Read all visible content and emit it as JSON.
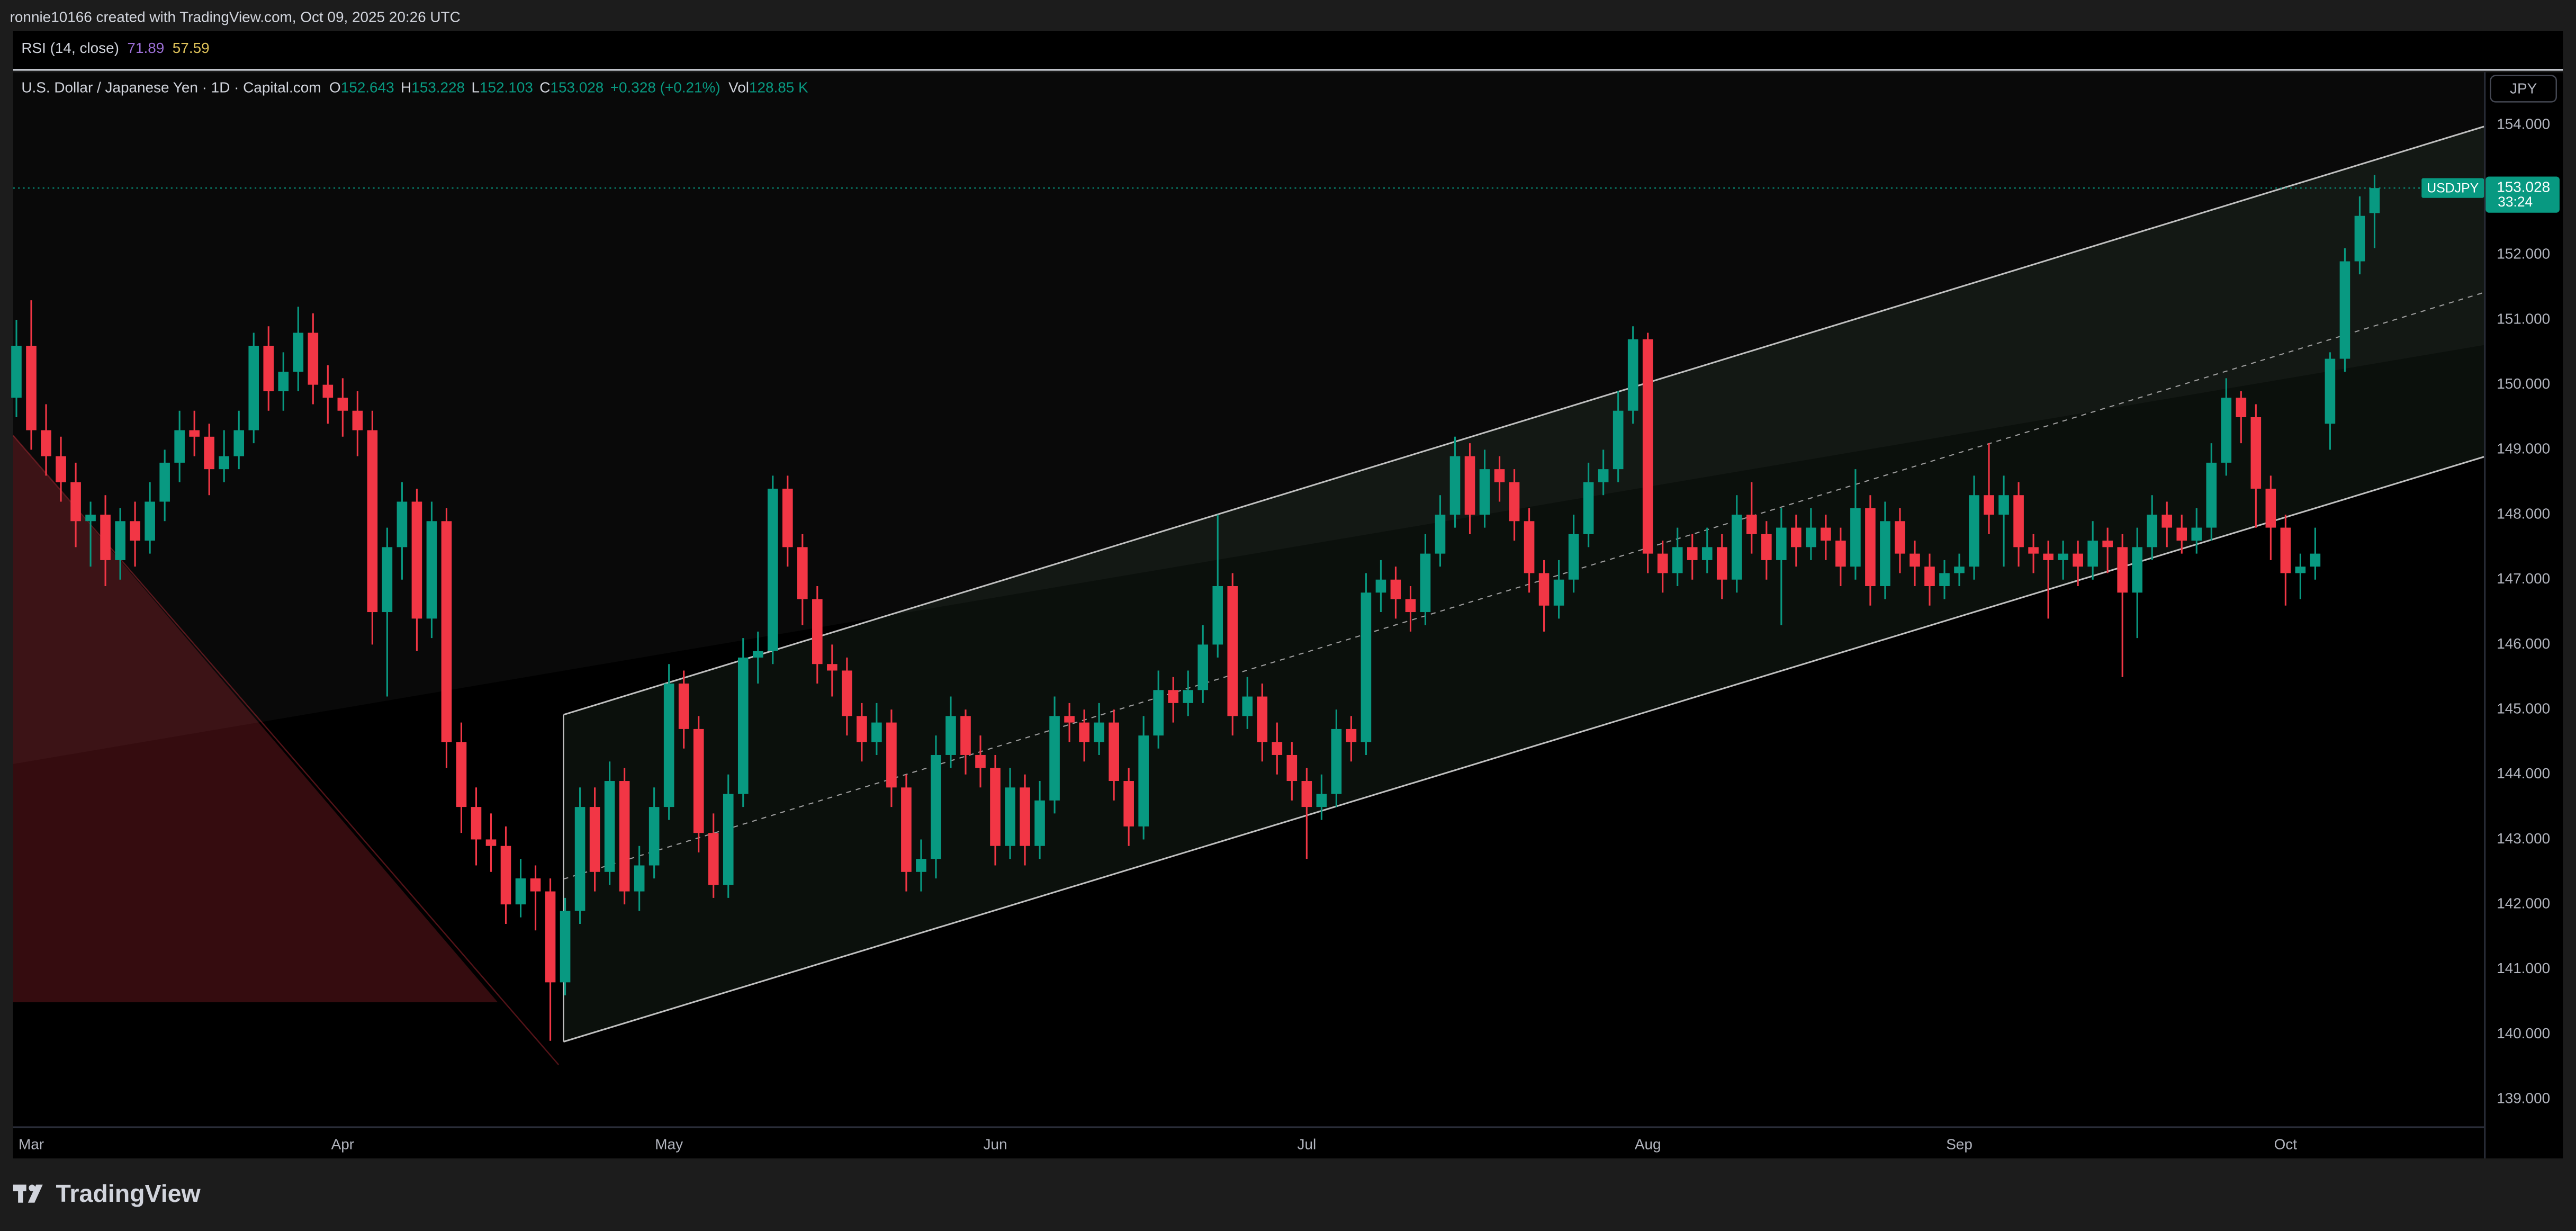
{
  "header": {
    "credit": "ronnie10166 created with TradingView.com, Oct 09, 2025 20:26 UTC"
  },
  "indicator": {
    "name": "RSI (14, close)",
    "values": [
      71.89,
      57.59
    ]
  },
  "footer": {
    "brand": "TradingView"
  },
  "chart_data": {
    "type": "candlestick",
    "title": "U.S. Dollar / Japanese Yen · 1D · Capital.com",
    "ohlc_labels": [
      "O",
      "H",
      "L",
      "C"
    ],
    "change": "+0.328 (+0.21%)",
    "volume_label": "Vol",
    "volume": "128.85 K",
    "currency": "JPY",
    "countdown": "33:24",
    "up_color": "#089981",
    "down_color": "#f23645",
    "grid": false,
    "ylim": [
      138.09,
      154.81
    ],
    "yticks": [
      {
        "value": 139,
        "label": "139.000"
      },
      {
        "value": 140,
        "label": "140.000"
      },
      {
        "value": 141,
        "label": "141.000"
      },
      {
        "value": 142,
        "label": "142.000"
      },
      {
        "value": 143,
        "label": "143.000"
      },
      {
        "value": 144,
        "label": "144.000"
      },
      {
        "value": 145,
        "label": "145.000"
      },
      {
        "value": 146,
        "label": "146.000"
      },
      {
        "value": 147,
        "label": "147.000"
      },
      {
        "value": 148,
        "label": "148.000"
      },
      {
        "value": 149,
        "label": "149.000"
      },
      {
        "value": 150,
        "label": "150.000"
      },
      {
        "value": 151,
        "label": "151.000"
      },
      {
        "value": 152,
        "label": "152.000"
      },
      {
        "value": 153,
        "label": "153.000"
      },
      {
        "value": 154,
        "label": "154.000"
      }
    ],
    "categories": [
      null,
      "Mar",
      null,
      null,
      null,
      null,
      null,
      null,
      null,
      null,
      null,
      null,
      null,
      null,
      null,
      null,
      null,
      null,
      null,
      null,
      null,
      null,
      "Apr",
      null,
      null,
      null,
      null,
      null,
      null,
      null,
      null,
      null,
      null,
      null,
      null,
      null,
      null,
      null,
      null,
      null,
      null,
      null,
      null,
      null,
      "May",
      null,
      null,
      null,
      null,
      null,
      null,
      null,
      null,
      null,
      null,
      null,
      null,
      null,
      null,
      null,
      null,
      null,
      null,
      null,
      null,
      null,
      "Jun",
      null,
      null,
      null,
      null,
      null,
      null,
      null,
      null,
      null,
      null,
      null,
      null,
      null,
      null,
      null,
      null,
      null,
      null,
      null,
      null,
      "Jul",
      null,
      null,
      null,
      null,
      null,
      null,
      null,
      null,
      null,
      null,
      null,
      null,
      null,
      null,
      null,
      null,
      null,
      null,
      null,
      null,
      null,
      null,
      "Aug",
      null,
      null,
      null,
      null,
      null,
      null,
      null,
      null,
      null,
      null,
      null,
      null,
      null,
      null,
      null,
      null,
      null,
      null,
      null,
      null,
      "Sep",
      null,
      null,
      null,
      null,
      null,
      null,
      null,
      null,
      null,
      null,
      null,
      null,
      null,
      null,
      null,
      null,
      null,
      null,
      null,
      null,
      null,
      "Oct",
      null,
      null,
      null,
      null,
      null,
      null
    ],
    "series": [
      {
        "name": "USDJPY",
        "open": [
          149.8,
          150.6,
          149.3,
          148.9,
          148.5,
          147.9,
          148.0,
          147.3,
          147.9,
          147.6,
          148.2,
          148.8,
          149.3,
          149.2,
          148.7,
          148.9,
          149.3,
          150.6,
          149.9,
          150.2,
          150.8,
          150.0,
          149.8,
          149.6,
          149.3,
          146.5,
          147.5,
          148.2,
          146.4,
          147.9,
          144.5,
          143.5,
          143.0,
          142.9,
          142.0,
          142.4,
          142.2,
          140.8,
          141.9,
          143.5,
          142.5,
          143.9,
          142.2,
          142.6,
          143.5,
          145.4,
          144.7,
          143.1,
          142.3,
          143.7,
          145.8,
          145.9,
          148.4,
          147.5,
          146.7,
          145.7,
          145.6,
          144.9,
          144.5,
          144.8,
          143.8,
          142.5,
          142.7,
          144.3,
          144.9,
          144.3,
          144.1,
          142.9,
          143.8,
          142.9,
          143.6,
          144.9,
          144.8,
          144.5,
          144.8,
          143.9,
          143.2,
          144.6,
          145.3,
          145.1,
          145.3,
          146.0,
          146.9,
          144.9,
          145.2,
          144.5,
          144.3,
          143.9,
          143.5,
          143.7,
          144.7,
          144.5,
          146.8,
          147.0,
          146.7,
          146.5,
          147.4,
          148.0,
          148.9,
          148.0,
          148.7,
          148.5,
          147.9,
          147.1,
          146.6,
          147.0,
          147.7,
          148.5,
          148.7,
          149.6,
          150.7,
          147.4,
          147.1,
          147.5,
          147.3,
          147.5,
          147.0,
          148.0,
          147.7,
          147.3,
          147.8,
          147.5,
          147.8,
          147.6,
          147.2,
          148.1,
          146.9,
          147.9,
          147.4,
          147.2,
          146.9,
          147.1,
          147.2,
          148.3,
          148.0,
          148.3,
          147.5,
          147.4,
          147.3,
          147.4,
          147.2,
          147.6,
          147.5,
          146.8,
          147.5,
          148.0,
          147.8,
          147.6,
          147.8,
          148.8,
          149.8,
          149.5,
          148.4,
          147.8,
          147.1,
          147.2,
          149.4,
          150.4,
          151.9,
          152.643
        ],
        "high": [
          151.0,
          151.3,
          149.7,
          149.2,
          148.8,
          148.2,
          148.3,
          148.1,
          148.2,
          148.5,
          149.0,
          149.6,
          149.6,
          149.4,
          149.3,
          149.6,
          150.8,
          150.9,
          150.5,
          151.2,
          151.1,
          150.3,
          150.1,
          149.9,
          149.6,
          147.8,
          148.5,
          148.4,
          148.2,
          148.1,
          144.8,
          143.8,
          143.4,
          143.2,
          142.7,
          142.6,
          142.4,
          142.1,
          143.8,
          143.8,
          144.2,
          144.1,
          142.9,
          143.8,
          145.7,
          145.6,
          144.9,
          143.4,
          144.0,
          146.1,
          146.2,
          148.6,
          148.6,
          147.7,
          146.9,
          146.0,
          145.8,
          145.1,
          145.1,
          145.0,
          144.0,
          143.0,
          144.6,
          145.2,
          145.0,
          144.6,
          144.3,
          144.1,
          144.0,
          143.9,
          145.2,
          145.1,
          145.0,
          145.1,
          145.0,
          144.1,
          144.9,
          145.6,
          145.5,
          145.6,
          146.3,
          148.0,
          147.1,
          145.5,
          145.4,
          144.8,
          144.5,
          144.1,
          144.0,
          145.0,
          144.9,
          147.1,
          147.3,
          147.2,
          146.9,
          147.7,
          148.3,
          149.2,
          149.1,
          149.0,
          148.9,
          148.7,
          148.1,
          147.3,
          147.3,
          148.0,
          148.8,
          149.0,
          149.9,
          150.9,
          150.8,
          147.6,
          147.8,
          147.7,
          147.8,
          147.7,
          148.3,
          148.5,
          147.9,
          148.1,
          148.0,
          148.1,
          148.0,
          147.8,
          148.7,
          148.3,
          148.2,
          148.1,
          147.6,
          147.4,
          147.3,
          147.4,
          148.6,
          149.1,
          148.6,
          148.5,
          147.7,
          147.6,
          147.6,
          147.6,
          147.9,
          147.8,
          147.7,
          147.8,
          148.3,
          148.2,
          148.0,
          148.1,
          149.1,
          150.1,
          149.9,
          149.7,
          148.6,
          148.0,
          147.4,
          147.8,
          150.5,
          152.1,
          152.9,
          153.228
        ],
        "low": [
          149.5,
          149.0,
          148.6,
          148.2,
          147.5,
          147.2,
          146.9,
          147.0,
          147.2,
          147.4,
          147.9,
          148.5,
          148.9,
          148.3,
          148.5,
          148.7,
          149.1,
          149.6,
          149.6,
          149.9,
          149.7,
          149.4,
          149.2,
          148.9,
          146.0,
          145.2,
          147.0,
          145.9,
          146.1,
          144.1,
          143.1,
          142.6,
          142.5,
          141.7,
          141.8,
          141.6,
          139.9,
          140.6,
          141.7,
          142.2,
          142.3,
          142.0,
          141.9,
          142.4,
          143.3,
          144.4,
          142.8,
          142.1,
          142.1,
          143.5,
          145.4,
          145.7,
          147.2,
          146.3,
          145.4,
          145.2,
          144.6,
          144.2,
          144.3,
          143.5,
          142.2,
          142.2,
          142.4,
          144.1,
          144.0,
          143.8,
          142.6,
          142.7,
          142.6,
          142.7,
          143.4,
          144.5,
          144.2,
          144.3,
          143.6,
          142.9,
          143.0,
          144.4,
          144.8,
          144.9,
          145.1,
          145.8,
          144.6,
          144.7,
          144.2,
          144.0,
          143.6,
          142.7,
          143.3,
          143.5,
          144.2,
          144.3,
          146.5,
          146.4,
          146.2,
          146.3,
          147.2,
          147.8,
          147.7,
          147.8,
          148.2,
          147.6,
          146.8,
          146.2,
          146.4,
          146.8,
          147.5,
          148.3,
          148.5,
          149.4,
          147.1,
          146.8,
          146.9,
          147.0,
          147.1,
          146.7,
          146.8,
          147.4,
          147.0,
          146.3,
          147.2,
          147.3,
          147.3,
          146.9,
          147.0,
          146.6,
          146.7,
          147.1,
          146.9,
          146.6,
          146.7,
          146.9,
          147.0,
          147.7,
          147.2,
          147.2,
          147.1,
          146.4,
          147.0,
          146.9,
          147.0,
          147.1,
          145.5,
          146.1,
          147.3,
          147.5,
          147.4,
          147.4,
          147.6,
          148.6,
          149.1,
          147.8,
          147.3,
          146.6,
          146.7,
          147.0,
          149.0,
          150.2,
          151.7,
          152.103
        ],
        "close": [
          150.6,
          149.3,
          148.9,
          148.5,
          147.9,
          148.0,
          147.3,
          147.9,
          147.6,
          148.2,
          148.8,
          149.3,
          149.2,
          148.7,
          148.9,
          149.3,
          150.6,
          149.9,
          150.2,
          150.8,
          150.0,
          149.8,
          149.6,
          149.3,
          146.5,
          147.5,
          148.2,
          146.4,
          147.9,
          144.5,
          143.5,
          143.0,
          142.9,
          142.0,
          142.4,
          142.2,
          140.8,
          141.9,
          143.5,
          142.5,
          143.9,
          142.2,
          142.6,
          143.5,
          145.4,
          144.7,
          143.1,
          142.3,
          143.7,
          145.8,
          145.9,
          148.4,
          147.5,
          146.7,
          145.7,
          145.6,
          144.9,
          144.5,
          144.8,
          143.8,
          142.5,
          142.7,
          144.3,
          144.9,
          144.3,
          144.1,
          142.9,
          143.8,
          142.9,
          143.6,
          144.9,
          144.8,
          144.5,
          144.8,
          143.9,
          143.2,
          144.6,
          145.3,
          145.1,
          145.3,
          146.0,
          146.9,
          144.9,
          145.2,
          144.5,
          144.3,
          143.9,
          143.5,
          143.7,
          144.7,
          144.5,
          146.8,
          147.0,
          146.7,
          146.5,
          147.4,
          148.0,
          148.9,
          148.0,
          148.7,
          148.5,
          147.9,
          147.1,
          146.6,
          147.0,
          147.7,
          148.5,
          148.7,
          149.6,
          150.7,
          147.4,
          147.1,
          147.5,
          147.3,
          147.5,
          147.0,
          148.0,
          147.7,
          147.3,
          147.8,
          147.5,
          147.8,
          147.6,
          147.2,
          148.1,
          146.9,
          147.9,
          147.4,
          147.2,
          146.9,
          147.1,
          147.2,
          148.3,
          148.0,
          148.3,
          147.5,
          147.4,
          147.3,
          147.4,
          147.2,
          147.6,
          147.5,
          146.8,
          147.5,
          148.0,
          147.8,
          147.6,
          147.8,
          148.8,
          149.8,
          149.5,
          148.4,
          147.8,
          147.1,
          147.2,
          147.4,
          150.4,
          151.9,
          152.6,
          153.028
        ]
      }
    ]
  }
}
